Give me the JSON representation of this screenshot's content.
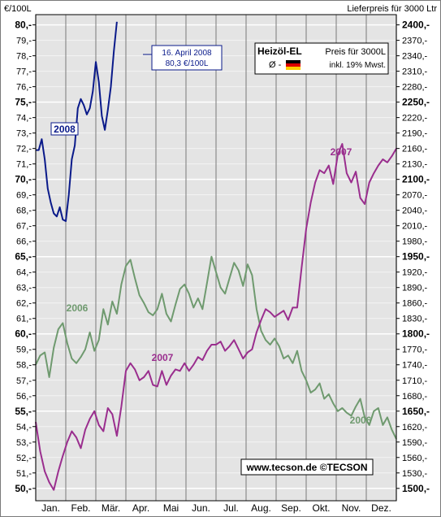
{
  "header": {
    "left_unit": "€/100L",
    "right_unit": "Lieferpreis für 3000 Ltr"
  },
  "legend_box": {
    "title": "Heizöl-EL",
    "subtitle": "Preis für 3000L",
    "avg_label": "Ø -",
    "vat_note": "inkl. 19% Mwst."
  },
  "callout": {
    "date": "16. April 2008",
    "value": "80,3 €/100L"
  },
  "footer": {
    "credit": "www.tecson.de  ©TECSON"
  },
  "colors": {
    "2006": "#6f9a6f",
    "2007": "#9a2e8e",
    "2008": "#0a1a8a",
    "background": "#e4e4e4",
    "grid": "#ffffff",
    "month_grid": "#8c8c8c"
  },
  "chart_data": {
    "type": "line",
    "title": "Heizöl-EL",
    "xlabel": "",
    "ylabel": "€/100L",
    "ylim": [
      49.5,
      80.5
    ],
    "y2label": "Lieferpreis für 3000 Ltr",
    "y2lim": [
      1485,
      2415
    ],
    "grid": true,
    "legend_placement": "top-right",
    "months": [
      "Jan.",
      "Feb.",
      "Mär.",
      "Apr.",
      "Mai",
      "Jun.",
      "Jul.",
      "Aug.",
      "Sep.",
      "Okt.",
      "Nov.",
      "Dez."
    ],
    "yticks": [
      "50,-",
      "51,-",
      "52,-",
      "53,-",
      "54,-",
      "55,-",
      "56,-",
      "57,-",
      "58,-",
      "59,-",
      "60,-",
      "61,-",
      "62,-",
      "63,-",
      "64,-",
      "65,-",
      "66,-",
      "67,-",
      "68,-",
      "69,-",
      "70,-",
      "71,-",
      "72,-",
      "73,-",
      "74,-",
      "75,-",
      "76,-",
      "77,-",
      "78,-",
      "79,-",
      "80,-"
    ],
    "yticks_major": [
      "50,-",
      "55,-",
      "60,-",
      "65,-",
      "70,-",
      "75,-",
      "80,-"
    ],
    "y2ticks": [
      "1500,-",
      "1530,-",
      "1560,-",
      "1590,-",
      "1620,-",
      "1650,-",
      "1680,-",
      "1710,-",
      "1740,-",
      "1770,-",
      "1800,-",
      "1830,-",
      "1860,-",
      "1890,-",
      "1920,-",
      "1950,-",
      "1980,-",
      "2010,-",
      "2040,-",
      "2070,-",
      "2100,-",
      "2130,-",
      "2160,-",
      "2190,-",
      "2220,-",
      "2250,-",
      "2280,-",
      "2310,-",
      "2340,-",
      "2370,-",
      "2400,-"
    ],
    "y2ticks_major": [
      "1500,-",
      "1650,-",
      "1800,-",
      "1950,-",
      "2100,-",
      "2250,-",
      "2400,-"
    ],
    "x_unit": "month (1 = start of Jan., 13 = end of Dec.)",
    "series": [
      {
        "name": "2006",
        "label_text": "2006",
        "label_text_2": "2006",
        "x": [
          1.0,
          1.15,
          1.3,
          1.45,
          1.6,
          1.75,
          1.9,
          2.05,
          2.2,
          2.35,
          2.5,
          2.65,
          2.8,
          2.95,
          3.1,
          3.25,
          3.4,
          3.55,
          3.7,
          3.85,
          4.0,
          4.15,
          4.3,
          4.45,
          4.6,
          4.75,
          4.9,
          5.05,
          5.2,
          5.35,
          5.5,
          5.65,
          5.8,
          5.95,
          6.1,
          6.25,
          6.4,
          6.55,
          6.7,
          6.85,
          7.0,
          7.15,
          7.3,
          7.45,
          7.6,
          7.75,
          7.9,
          8.05,
          8.2,
          8.35,
          8.5,
          8.65,
          8.8,
          8.95,
          9.1,
          9.25,
          9.4,
          9.55,
          9.7,
          9.85,
          10.0,
          10.15,
          10.3,
          10.45,
          10.6,
          10.75,
          10.9,
          11.05,
          11.2,
          11.35,
          11.5,
          11.65,
          11.8,
          11.95,
          12.1,
          12.25,
          12.4,
          12.55,
          12.7,
          12.85,
          13.0
        ],
        "values": [
          58.0,
          58.6,
          58.8,
          57.2,
          59.1,
          60.3,
          60.7,
          59.4,
          58.4,
          58.1,
          58.5,
          59.0,
          60.1,
          58.9,
          59.6,
          61.6,
          60.6,
          62.1,
          61.3,
          63.2,
          64.4,
          64.8,
          63.6,
          62.5,
          62.0,
          61.4,
          61.2,
          61.6,
          62.6,
          61.3,
          60.8,
          61.9,
          62.9,
          63.2,
          62.6,
          61.7,
          62.3,
          61.6,
          63.3,
          65.0,
          64.0,
          63.0,
          62.6,
          63.6,
          64.6,
          64.1,
          63.1,
          64.5,
          63.8,
          61.6,
          60.2,
          59.6,
          59.3,
          59.7,
          59.2,
          58.4,
          58.6,
          58.1,
          58.9,
          57.6,
          57.0,
          56.2,
          56.4,
          56.8,
          55.8,
          56.1,
          55.5,
          55.0,
          55.2,
          54.9,
          54.7,
          55.3,
          55.8,
          54.6,
          54.1,
          55.0,
          55.2,
          54.1,
          54.6,
          53.8,
          53.2
        ]
      },
      {
        "name": "2007",
        "label_text": "2007",
        "label_text_2": "2007",
        "x": [
          1.0,
          1.15,
          1.3,
          1.45,
          1.6,
          1.75,
          1.9,
          2.05,
          2.2,
          2.35,
          2.5,
          2.65,
          2.8,
          2.95,
          3.1,
          3.25,
          3.4,
          3.55,
          3.7,
          3.85,
          4.0,
          4.15,
          4.3,
          4.45,
          4.6,
          4.75,
          4.9,
          5.05,
          5.2,
          5.35,
          5.5,
          5.65,
          5.8,
          5.95,
          6.1,
          6.25,
          6.4,
          6.55,
          6.7,
          6.85,
          7.0,
          7.15,
          7.3,
          7.45,
          7.6,
          7.75,
          7.9,
          8.05,
          8.2,
          8.35,
          8.5,
          8.65,
          8.8,
          8.95,
          9.1,
          9.25,
          9.4,
          9.55,
          9.7,
          9.85,
          10.0,
          10.15,
          10.3,
          10.45,
          10.6,
          10.75,
          10.9,
          11.05,
          11.2,
          11.35,
          11.5,
          11.65,
          11.8,
          11.95,
          12.1,
          12.25,
          12.4,
          12.55,
          12.7,
          12.85,
          13.0
        ],
        "values": [
          54.3,
          52.4,
          51.1,
          50.4,
          49.9,
          51.1,
          52.1,
          53.0,
          53.7,
          53.3,
          52.6,
          53.8,
          54.5,
          55.0,
          54.1,
          53.7,
          55.2,
          54.8,
          53.4,
          55.3,
          57.6,
          58.1,
          57.7,
          57.0,
          57.2,
          57.6,
          56.7,
          56.6,
          57.6,
          56.7,
          57.3,
          57.7,
          57.6,
          58.1,
          57.6,
          58.0,
          58.5,
          58.3,
          58.9,
          59.3,
          59.3,
          59.5,
          58.9,
          59.2,
          59.6,
          59.0,
          58.4,
          58.8,
          59.0,
          60.1,
          60.9,
          61.6,
          61.4,
          61.1,
          61.3,
          61.5,
          60.9,
          61.7,
          61.7,
          64.3,
          66.8,
          68.5,
          69.8,
          70.6,
          70.4,
          70.9,
          69.7,
          71.6,
          72.3,
          70.4,
          69.8,
          70.5,
          68.8,
          68.4,
          69.8,
          70.4,
          70.9,
          71.3,
          71.1,
          71.5,
          72.0
        ]
      },
      {
        "name": "2008",
        "label_text": "2008",
        "x": [
          1.0,
          1.1,
          1.2,
          1.3,
          1.4,
          1.5,
          1.6,
          1.7,
          1.8,
          1.9,
          2.0,
          2.1,
          2.2,
          2.3,
          2.4,
          2.5,
          2.6,
          2.7,
          2.8,
          2.9,
          3.0,
          3.1,
          3.2,
          3.3,
          3.4,
          3.5,
          3.6,
          3.7
        ],
        "values": [
          71.9,
          71.9,
          72.6,
          71.3,
          69.4,
          68.5,
          67.8,
          67.6,
          68.2,
          67.4,
          67.3,
          69.0,
          71.3,
          72.2,
          74.6,
          75.2,
          74.8,
          74.2,
          74.6,
          75.7,
          77.6,
          76.3,
          74.1,
          73.2,
          74.5,
          76.0,
          78.3,
          80.2
        ]
      }
    ]
  }
}
